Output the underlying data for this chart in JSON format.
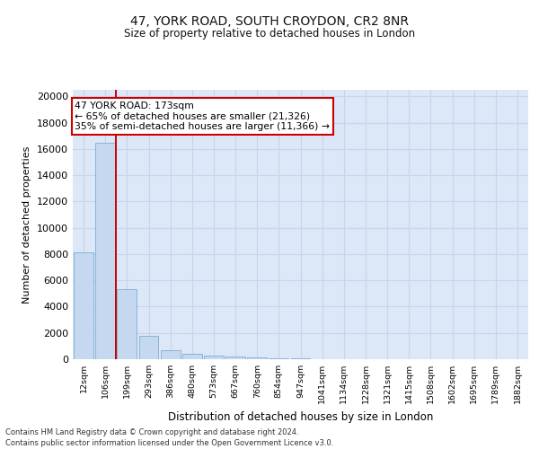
{
  "title1": "47, YORK ROAD, SOUTH CROYDON, CR2 8NR",
  "title2": "Size of property relative to detached houses in London",
  "xlabel": "Distribution of detached houses by size in London",
  "ylabel": "Number of detached properties",
  "categories": [
    "12sqm",
    "106sqm",
    "199sqm",
    "293sqm",
    "386sqm",
    "480sqm",
    "573sqm",
    "667sqm",
    "760sqm",
    "854sqm",
    "947sqm",
    "1041sqm",
    "1134sqm",
    "1228sqm",
    "1321sqm",
    "1415sqm",
    "1508sqm",
    "1602sqm",
    "1695sqm",
    "1789sqm",
    "1882sqm"
  ],
  "values": [
    8100,
    16500,
    5300,
    1750,
    650,
    380,
    280,
    200,
    160,
    100,
    50,
    30,
    0,
    0,
    0,
    0,
    0,
    0,
    0,
    0,
    0
  ],
  "bar_color": "#c5d8f0",
  "bar_edge_color": "#7aadd4",
  "vline_x": 1.5,
  "vline_color": "#cc0000",
  "annotation_title": "47 YORK ROAD: 173sqm",
  "annotation_line1": "← 65% of detached houses are smaller (21,326)",
  "annotation_line2": "35% of semi-detached houses are larger (11,366) →",
  "annotation_box_facecolor": "#ffffff",
  "annotation_box_edgecolor": "#cc0000",
  "ylim": [
    0,
    20500
  ],
  "yticks": [
    0,
    2000,
    4000,
    6000,
    8000,
    10000,
    12000,
    14000,
    16000,
    18000,
    20000
  ],
  "grid_color": "#c8d4e8",
  "background_color": "#dce8f8",
  "footer1": "Contains HM Land Registry data © Crown copyright and database right 2024.",
  "footer2": "Contains public sector information licensed under the Open Government Licence v3.0."
}
